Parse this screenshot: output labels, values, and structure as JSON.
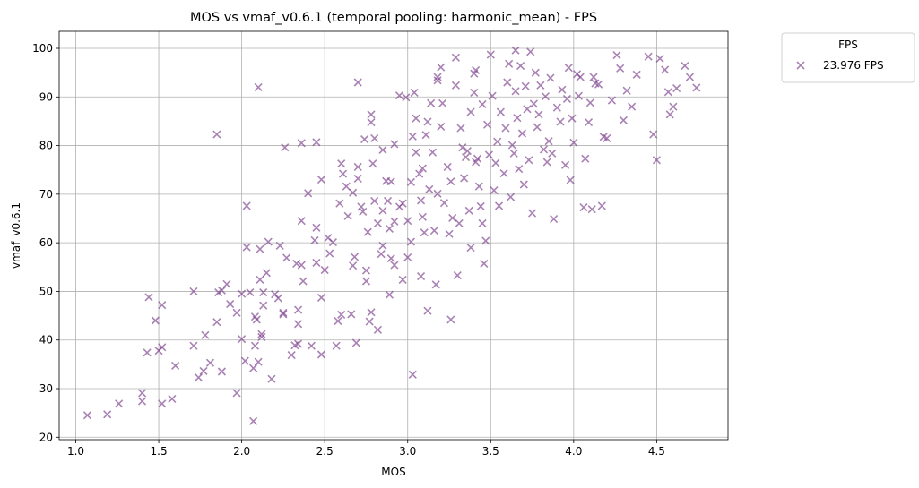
{
  "chart_data": {
    "type": "scatter",
    "title": "MOS vs vmaf_v0.6.1 (temporal pooling: harmonic_mean) - FPS",
    "xlabel": "MOS",
    "ylabel": "vmaf_v0.6.1",
    "xlim": [
      0.9,
      4.93
    ],
    "ylim": [
      19.5,
      103.5
    ],
    "xticks": [
      1.0,
      1.5,
      2.0,
      2.5,
      3.0,
      3.5,
      4.0,
      4.5
    ],
    "xtick_labels": [
      "1.0",
      "1.5",
      "2.0",
      "2.5",
      "3.0",
      "3.5",
      "4.0",
      "4.5"
    ],
    "yticks": [
      20,
      30,
      40,
      50,
      60,
      70,
      80,
      90,
      100
    ],
    "ytick_labels": [
      "20",
      "30",
      "40",
      "50",
      "60",
      "70",
      "80",
      "90",
      "100"
    ],
    "grid": true,
    "marker": "x",
    "legend": {
      "title": "FPS",
      "placement": "outside-top-right",
      "entries": [
        "23.976 FPS"
      ]
    },
    "colors": {
      "series": "#7b3f8c"
    },
    "series": [
      {
        "name": "23.976 FPS",
        "points": [
          [
            1.07,
            24.5
          ],
          [
            1.19,
            24.7
          ],
          [
            1.26,
            26.9
          ],
          [
            1.4,
            27.4
          ],
          [
            1.4,
            29.1
          ],
          [
            1.43,
            37.4
          ],
          [
            1.44,
            48.8
          ],
          [
            1.48,
            44.0
          ],
          [
            1.5,
            37.8
          ],
          [
            1.52,
            38.5
          ],
          [
            1.52,
            26.9
          ],
          [
            1.52,
            47.2
          ],
          [
            1.58,
            27.9
          ],
          [
            1.6,
            34.7
          ],
          [
            1.71,
            38.8
          ],
          [
            1.71,
            50.0
          ],
          [
            1.74,
            32.3
          ],
          [
            1.77,
            33.6
          ],
          [
            1.78,
            41.0
          ],
          [
            1.81,
            35.3
          ],
          [
            1.85,
            43.7
          ],
          [
            1.86,
            49.8
          ],
          [
            1.85,
            82.3
          ],
          [
            1.88,
            50.2
          ],
          [
            1.88,
            33.5
          ],
          [
            1.91,
            51.5
          ],
          [
            1.93,
            47.4
          ],
          [
            1.97,
            29.1
          ],
          [
            1.97,
            45.6
          ],
          [
            2.0,
            40.2
          ],
          [
            2.0,
            49.5
          ],
          [
            2.02,
            35.7
          ],
          [
            2.03,
            67.6
          ],
          [
            2.03,
            59.1
          ],
          [
            2.05,
            49.8
          ],
          [
            2.07,
            23.3
          ],
          [
            2.07,
            34.2
          ],
          [
            2.09,
            44.2
          ],
          [
            2.08,
            44.8
          ],
          [
            2.08,
            38.8
          ],
          [
            2.1,
            35.5
          ],
          [
            2.11,
            52.4
          ],
          [
            2.11,
            58.7
          ],
          [
            2.12,
            41.2
          ],
          [
            2.12,
            40.6
          ],
          [
            2.13,
            47.1
          ],
          [
            2.13,
            49.8
          ],
          [
            2.1,
            92.0
          ],
          [
            2.15,
            53.8
          ],
          [
            2.16,
            60.2
          ],
          [
            2.18,
            32.0
          ],
          [
            2.2,
            49.4
          ],
          [
            2.22,
            48.6
          ],
          [
            2.23,
            59.4
          ],
          [
            2.25,
            45.6
          ],
          [
            2.25,
            45.3
          ],
          [
            2.27,
            56.9
          ],
          [
            2.26,
            79.6
          ],
          [
            2.3,
            36.9
          ],
          [
            2.32,
            38.9
          ],
          [
            2.33,
            55.7
          ],
          [
            2.34,
            39.2
          ],
          [
            2.34,
            43.3
          ],
          [
            2.34,
            46.2
          ],
          [
            2.36,
            64.5
          ],
          [
            2.36,
            55.4
          ],
          [
            2.37,
            52.1
          ],
          [
            2.36,
            80.5
          ],
          [
            2.4,
            70.2
          ],
          [
            2.42,
            38.8
          ],
          [
            2.44,
            60.5
          ],
          [
            2.45,
            55.9
          ],
          [
            2.45,
            63.1
          ],
          [
            2.45,
            80.7
          ],
          [
            2.48,
            73.0
          ],
          [
            2.48,
            37.0
          ],
          [
            2.48,
            48.7
          ],
          [
            2.5,
            54.4
          ],
          [
            2.52,
            61.0
          ],
          [
            2.53,
            57.8
          ],
          [
            2.55,
            60.1
          ],
          [
            2.57,
            38.8
          ],
          [
            2.58,
            43.9
          ],
          [
            2.6,
            45.2
          ],
          [
            2.59,
            68.1
          ],
          [
            2.6,
            76.3
          ],
          [
            2.61,
            74.2
          ],
          [
            2.63,
            71.6
          ],
          [
            2.64,
            65.5
          ],
          [
            2.66,
            45.3
          ],
          [
            2.67,
            70.3
          ],
          [
            2.67,
            55.3
          ],
          [
            2.68,
            57.1
          ],
          [
            2.69,
            39.4
          ],
          [
            2.7,
            75.6
          ],
          [
            2.7,
            73.2
          ],
          [
            2.7,
            93.0
          ],
          [
            2.72,
            67.4
          ],
          [
            2.73,
            66.4
          ],
          [
            2.74,
            81.3
          ],
          [
            2.75,
            52.1
          ],
          [
            2.75,
            54.3
          ],
          [
            2.76,
            62.2
          ],
          [
            2.77,
            43.8
          ],
          [
            2.78,
            45.7
          ],
          [
            2.78,
            84.8
          ],
          [
            2.78,
            86.4
          ],
          [
            2.79,
            76.3
          ],
          [
            2.8,
            81.5
          ],
          [
            2.8,
            68.6
          ],
          [
            2.82,
            42.1
          ],
          [
            2.82,
            64.0
          ],
          [
            2.84,
            57.7
          ],
          [
            2.85,
            66.6
          ],
          [
            2.85,
            59.4
          ],
          [
            2.85,
            79.1
          ],
          [
            2.87,
            72.7
          ],
          [
            2.88,
            68.6
          ],
          [
            2.89,
            49.3
          ],
          [
            2.89,
            62.9
          ],
          [
            2.9,
            72.6
          ],
          [
            2.9,
            56.8
          ],
          [
            2.92,
            80.3
          ],
          [
            2.92,
            55.4
          ],
          [
            2.92,
            64.4
          ],
          [
            2.95,
            67.4
          ],
          [
            2.95,
            90.3
          ],
          [
            2.97,
            68.1
          ],
          [
            2.97,
            52.4
          ],
          [
            2.99,
            89.9
          ],
          [
            3.0,
            64.5
          ],
          [
            3.0,
            57.0
          ],
          [
            3.02,
            72.5
          ],
          [
            3.02,
            60.2
          ],
          [
            3.03,
            81.9
          ],
          [
            3.03,
            32.9
          ],
          [
            3.04,
            90.9
          ],
          [
            3.05,
            85.6
          ],
          [
            3.05,
            78.6
          ],
          [
            3.07,
            74.2
          ],
          [
            3.08,
            68.7
          ],
          [
            3.08,
            53.1
          ],
          [
            3.09,
            75.3
          ],
          [
            3.09,
            65.3
          ],
          [
            3.1,
            62.1
          ],
          [
            3.11,
            82.2
          ],
          [
            3.12,
            84.9
          ],
          [
            3.12,
            46.0
          ],
          [
            3.13,
            71.0
          ],
          [
            3.14,
            88.7
          ],
          [
            3.15,
            78.6
          ],
          [
            3.16,
            62.5
          ],
          [
            3.17,
            51.4
          ],
          [
            3.18,
            94.1
          ],
          [
            3.18,
            70.1
          ],
          [
            3.18,
            93.4
          ],
          [
            3.2,
            96.1
          ],
          [
            3.2,
            83.9
          ],
          [
            3.21,
            88.7
          ],
          [
            3.22,
            68.2
          ],
          [
            3.24,
            75.6
          ],
          [
            3.25,
            61.8
          ],
          [
            3.26,
            44.2
          ],
          [
            3.26,
            72.6
          ],
          [
            3.27,
            65.1
          ],
          [
            3.29,
            92.4
          ],
          [
            3.29,
            98.1
          ],
          [
            3.3,
            53.3
          ],
          [
            3.31,
            64.0
          ],
          [
            3.32,
            83.6
          ],
          [
            3.33,
            79.6
          ],
          [
            3.34,
            73.3
          ],
          [
            3.35,
            77.6
          ],
          [
            3.36,
            78.9
          ],
          [
            3.37,
            66.6
          ],
          [
            3.38,
            86.9
          ],
          [
            3.38,
            59.0
          ],
          [
            3.4,
            90.9
          ],
          [
            3.4,
            94.8
          ],
          [
            3.41,
            95.5
          ],
          [
            3.41,
            76.6
          ],
          [
            3.42,
            77.3
          ],
          [
            3.43,
            71.6
          ],
          [
            3.44,
            67.5
          ],
          [
            3.45,
            64.0
          ],
          [
            3.45,
            88.5
          ],
          [
            3.46,
            55.7
          ],
          [
            3.47,
            60.4
          ],
          [
            3.48,
            84.3
          ],
          [
            3.49,
            78.1
          ],
          [
            3.5,
            98.7
          ],
          [
            3.51,
            90.2
          ],
          [
            3.52,
            70.8
          ],
          [
            3.53,
            76.4
          ],
          [
            3.54,
            80.8
          ],
          [
            3.55,
            67.6
          ],
          [
            3.56,
            86.9
          ],
          [
            3.58,
            74.3
          ],
          [
            3.59,
            83.6
          ],
          [
            3.6,
            93.0
          ],
          [
            3.61,
            96.8
          ],
          [
            3.62,
            69.4
          ],
          [
            3.63,
            80.1
          ],
          [
            3.64,
            78.4
          ],
          [
            3.65,
            91.2
          ],
          [
            3.65,
            99.6
          ],
          [
            3.66,
            85.7
          ],
          [
            3.67,
            75.2
          ],
          [
            3.68,
            96.4
          ],
          [
            3.69,
            82.5
          ],
          [
            3.7,
            72.0
          ],
          [
            3.71,
            92.2
          ],
          [
            3.72,
            87.5
          ],
          [
            3.73,
            77.0
          ],
          [
            3.74,
            99.3
          ],
          [
            3.75,
            66.1
          ],
          [
            3.76,
            88.6
          ],
          [
            3.77,
            95.0
          ],
          [
            3.78,
            83.8
          ],
          [
            3.79,
            86.4
          ],
          [
            3.8,
            92.4
          ],
          [
            3.82,
            79.2
          ],
          [
            3.83,
            90.1
          ],
          [
            3.84,
            76.6
          ],
          [
            3.85,
            80.9
          ],
          [
            3.86,
            93.9
          ],
          [
            3.87,
            78.4
          ],
          [
            3.88,
            64.9
          ],
          [
            3.9,
            87.8
          ],
          [
            3.92,
            84.9
          ],
          [
            3.93,
            91.5
          ],
          [
            3.95,
            76.0
          ],
          [
            3.96,
            89.6
          ],
          [
            3.97,
            96.0
          ],
          [
            3.98,
            72.9
          ],
          [
            3.99,
            85.6
          ],
          [
            4.0,
            80.6
          ],
          [
            4.02,
            94.7
          ],
          [
            4.03,
            90.2
          ],
          [
            4.04,
            94.1
          ],
          [
            4.06,
            67.3
          ],
          [
            4.07,
            77.3
          ],
          [
            4.09,
            84.8
          ],
          [
            4.1,
            88.8
          ],
          [
            4.11,
            66.9
          ],
          [
            4.12,
            94.1
          ],
          [
            4.13,
            92.8
          ],
          [
            4.15,
            92.6
          ],
          [
            4.17,
            67.6
          ],
          [
            4.18,
            81.8
          ],
          [
            4.2,
            81.5
          ],
          [
            4.23,
            89.3
          ],
          [
            4.26,
            98.6
          ],
          [
            4.28,
            95.9
          ],
          [
            4.3,
            85.2
          ],
          [
            4.32,
            91.3
          ],
          [
            4.35,
            88.0
          ],
          [
            4.38,
            94.6
          ],
          [
            4.45,
            98.3
          ],
          [
            4.48,
            82.3
          ],
          [
            4.5,
            77.0
          ],
          [
            4.52,
            97.9
          ],
          [
            4.55,
            95.6
          ],
          [
            4.57,
            91.0
          ],
          [
            4.58,
            86.4
          ],
          [
            4.6,
            88.0
          ],
          [
            4.62,
            91.8
          ],
          [
            4.67,
            96.4
          ],
          [
            4.7,
            94.1
          ],
          [
            4.74,
            91.9
          ]
        ]
      }
    ]
  }
}
